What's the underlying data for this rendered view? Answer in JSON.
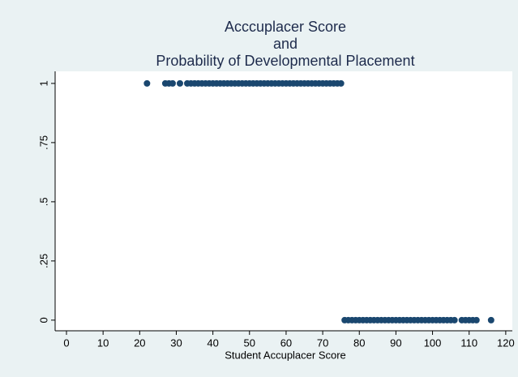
{
  "chart_data": {
    "type": "scatter",
    "title": [
      "Acccuplacer Score",
      "and",
      "Probability of Developmental Placement"
    ],
    "x_label": "Student Accuplacer Score",
    "series": [
      {
        "color": "#1a476f",
        "x": [
          22,
          27,
          28,
          29,
          31,
          33,
          34,
          35,
          36,
          37,
          38,
          39,
          40,
          41,
          42,
          43,
          44,
          45,
          46,
          47,
          48,
          49,
          50,
          51,
          52,
          53,
          54,
          55,
          56,
          57,
          58,
          59,
          60,
          61,
          62,
          63,
          64,
          65,
          66,
          67,
          68,
          69,
          70,
          71,
          72,
          73,
          74,
          75,
          76,
          77,
          78,
          79,
          80,
          81,
          82,
          83,
          84,
          85,
          86,
          87,
          88,
          89,
          90,
          91,
          92,
          93,
          94,
          95,
          96,
          97,
          98,
          99,
          100,
          101,
          102,
          103,
          104,
          105,
          106,
          108,
          109,
          110,
          111,
          112,
          116
        ],
        "values": [
          1,
          1,
          1,
          1,
          1,
          1,
          1,
          1,
          1,
          1,
          1,
          1,
          1,
          1,
          1,
          1,
          1,
          1,
          1,
          1,
          1,
          1,
          1,
          1,
          1,
          1,
          1,
          1,
          1,
          1,
          1,
          1,
          1,
          1,
          1,
          1,
          1,
          1,
          1,
          1,
          1,
          1,
          1,
          1,
          1,
          1,
          1,
          1,
          0,
          0,
          0,
          0,
          0,
          0,
          0,
          0,
          0,
          0,
          0,
          0,
          0,
          0,
          0,
          0,
          0,
          0,
          0,
          0,
          0,
          0,
          0,
          0,
          0,
          0,
          0,
          0,
          0,
          0,
          0,
          0,
          0,
          0,
          0,
          0,
          0
        ]
      }
    ],
    "xlim": [
      -3.1,
      121.8
    ],
    "xticks": [
      0,
      10,
      20,
      30,
      40,
      50,
      60,
      70,
      80,
      90,
      100,
      110,
      120
    ],
    "ylim": [
      -0.045,
      1.051
    ],
    "yticks": [
      0,
      {
        "value": 0.25,
        "label": ".25"
      },
      {
        "value": 0.5,
        "label": ".5"
      },
      {
        "value": 0.75,
        "label": ".75"
      },
      1
    ],
    "grid": false
  }
}
